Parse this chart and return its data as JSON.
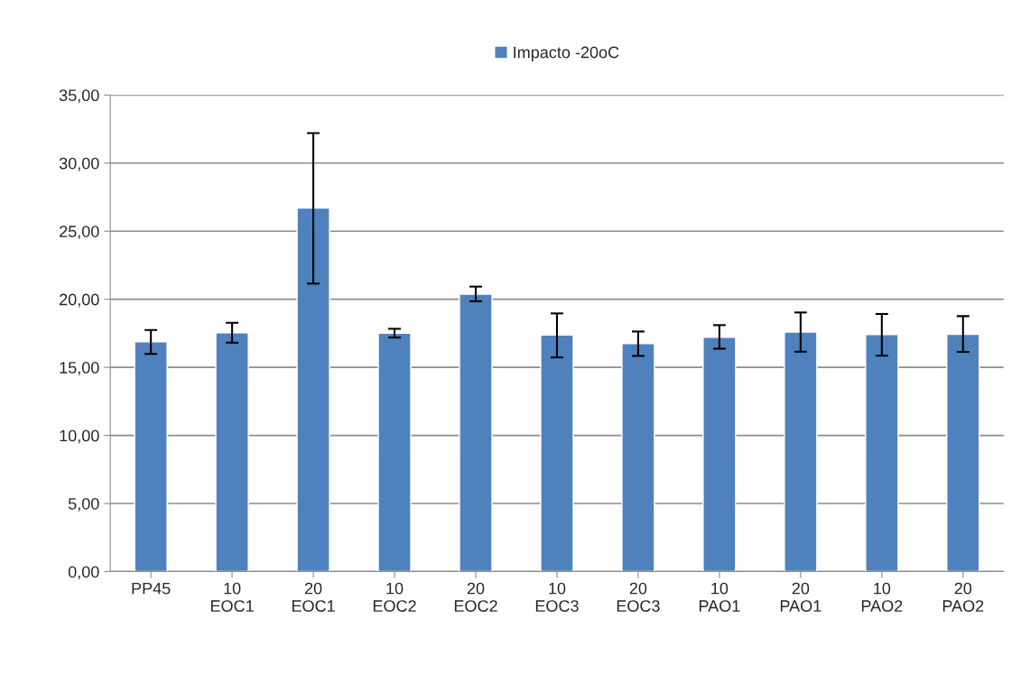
{
  "chart_data": {
    "type": "bar",
    "categories": [
      "PP45",
      "10\nEOC1",
      "20\nEOC1",
      "10\nEOC2",
      "20\nEOC2",
      "10\nEOC3",
      "20\nEOC3",
      "10\nPAO1",
      "20\nPAO1",
      "10\nPAO2",
      "20\nPAO2"
    ],
    "series": [
      {
        "name": "Impacto -20oC",
        "color": "#4f81bd",
        "values": [
          16.88,
          17.54,
          26.7,
          17.5,
          20.38,
          17.37,
          16.75,
          17.21,
          17.59,
          17.41,
          17.43
        ],
        "errors": [
          [
            15.99,
            17.74
          ],
          [
            16.81,
            18.27
          ],
          [
            21.15,
            32.21
          ],
          [
            17.19,
            17.83
          ],
          [
            19.85,
            20.93
          ],
          [
            15.73,
            18.96
          ],
          [
            15.84,
            17.63
          ],
          [
            16.37,
            18.1
          ],
          [
            16.15,
            19.03
          ],
          [
            15.86,
            18.92
          ],
          [
            16.13,
            18.76
          ]
        ]
      }
    ],
    "ylim": [
      0,
      35
    ],
    "yticks": [
      {
        "value": 0,
        "label": "0,00"
      },
      {
        "value": 5,
        "label": "5,00"
      },
      {
        "value": 10,
        "label": "10,00"
      },
      {
        "value": 15,
        "label": "15,00"
      },
      {
        "value": 20,
        "label": "20,00"
      },
      {
        "value": 25,
        "label": "25,00"
      },
      {
        "value": 30,
        "label": "30,00"
      },
      {
        "value": 35,
        "label": "35,00"
      }
    ],
    "grid": "y",
    "legend": "top"
  }
}
